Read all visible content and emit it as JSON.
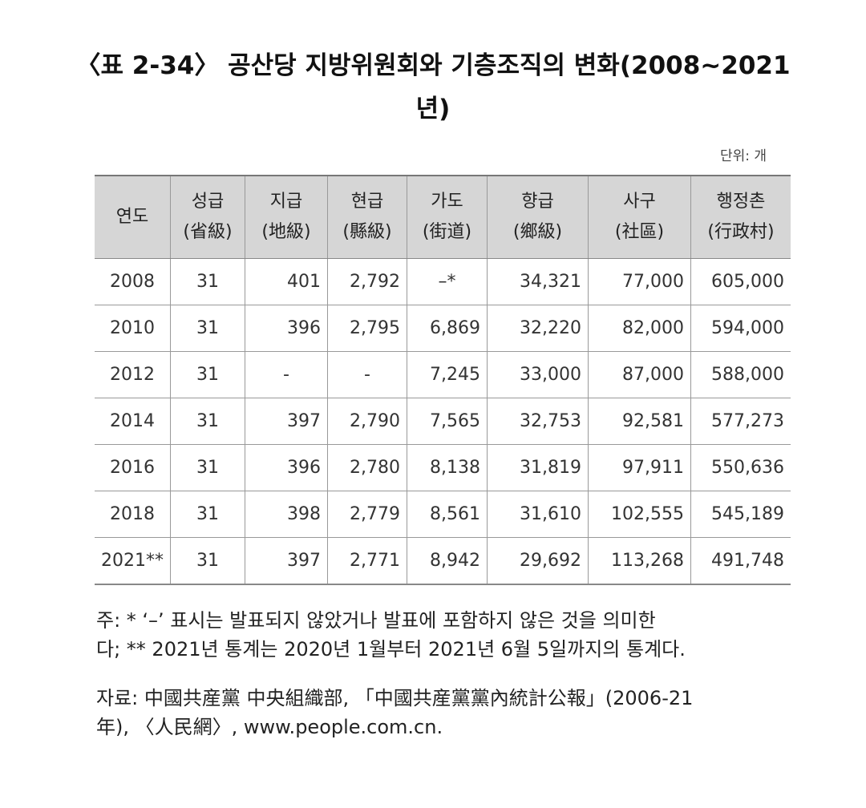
{
  "title": {
    "lines": [
      "〈표 2-34〉 공산당 지방위원회와 기층조직의 변화(2008~2021",
      "년)"
    ]
  },
  "unit": "단위: 개",
  "table": {
    "header": [
      [
        "연도"
      ],
      [
        "성급",
        "(省級)"
      ],
      [
        "지급",
        "(地級)"
      ],
      [
        "현급",
        "(縣級)"
      ],
      [
        "가도",
        "(街道)"
      ],
      [
        "향급",
        "(鄉級)"
      ],
      [
        "사구",
        "(社區)"
      ],
      [
        "행정촌",
        "(行政村)"
      ]
    ],
    "rows": [
      [
        "2008",
        "31",
        "401",
        "2,792",
        "–*",
        "34,321",
        "77,000",
        "605,000"
      ],
      [
        "2010",
        "31",
        "396",
        "2,795",
        "6,869",
        "32,220",
        "82,000",
        "594,000"
      ],
      [
        "2012",
        "31",
        "-",
        "-",
        "7,245",
        "33,000",
        "87,000",
        "588,000"
      ],
      [
        "2014",
        "31",
        "397",
        "2,790",
        "7,565",
        "32,753",
        "92,581",
        "577,273"
      ],
      [
        "2016",
        "31",
        "396",
        "2,780",
        "8,138",
        "31,819",
        "97,911",
        "550,636"
      ],
      [
        "2018",
        "31",
        "398",
        "2,779",
        "8,561",
        "31,610",
        "102,555",
        "545,189"
      ],
      [
        "2021**",
        "31",
        "397",
        "2,771",
        "8,942",
        "29,692",
        "113,268",
        "491,748"
      ]
    ]
  },
  "note": {
    "lines": [
      "주: * ‘–’ 표시는 발표되지 않았거나 발표에 포함하지 않은 것을 의미한",
      "다; ** 2021년 통계는 2020년 1월부터 2021년 6월 5일까지의 통계다."
    ]
  },
  "source": {
    "lines": [
      "자료: 中國共産黨 中央組織部, 「中國共産黨黨內統計公報」(2006-21",
      "年), 〈人民網〉, www.people.com.cn."
    ]
  }
}
